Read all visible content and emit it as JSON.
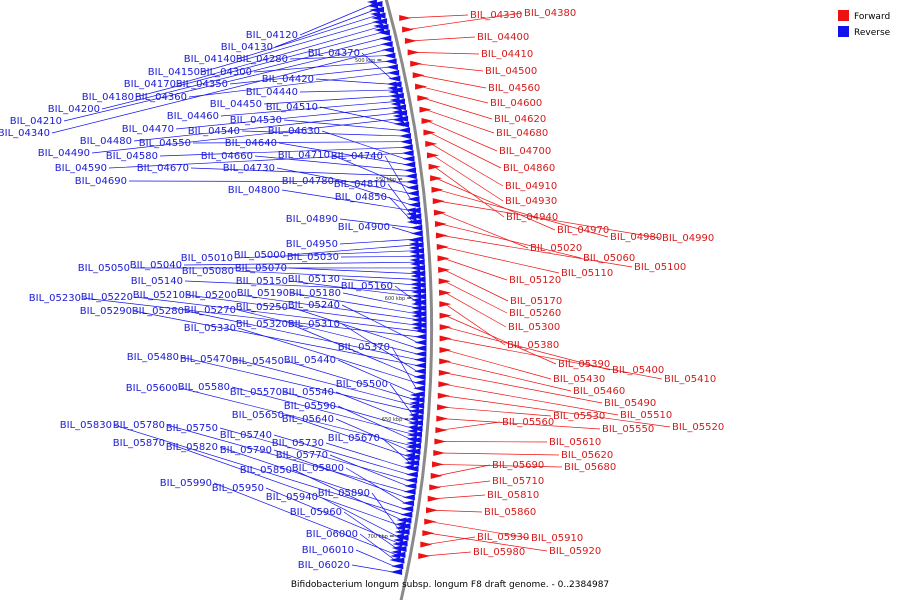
{
  "caption": "Bifidobacterium longum subsp. longum F8 draft genome. - 0..2384987",
  "legend": [
    {
      "label": "Forward",
      "color": "#ee1111"
    },
    {
      "label": "Reverse",
      "color": "#1111ee"
    }
  ],
  "colors": {
    "forward": "#ee1111",
    "reverse": "#1111ee",
    "backbone": "#888888"
  },
  "ticks": [
    "500 kbp",
    "550 kbp",
    "600 kbp",
    "650 kbp",
    "700 kbp"
  ],
  "reverse_genes": [
    "BIL_04120",
    "BIL_04130",
    "BIL_04140",
    "BIL_04150",
    "BIL_04170",
    "BIL_04180",
    "BIL_04200",
    "BIL_04210",
    "BIL_04340",
    "BIL_04280",
    "BIL_04300",
    "BIL_04350",
    "BIL_04360",
    "BIL_04370",
    "BIL_04420",
    "BIL_04440",
    "BIL_04450",
    "BIL_04460",
    "BIL_04470",
    "BIL_04480",
    "BIL_04490",
    "BIL_04510",
    "BIL_04530",
    "BIL_04540",
    "BIL_04550",
    "BIL_04580",
    "BIL_04590",
    "BIL_04630",
    "BIL_04640",
    "BIL_04660",
    "BIL_04670",
    "BIL_04690",
    "BIL_04710",
    "BIL_04730",
    "BIL_04740",
    "BIL_04780",
    "BIL_04800",
    "BIL_04810",
    "BIL_04850",
    "BIL_04890",
    "BIL_04900",
    "BIL_04950",
    "BIL_05000",
    "BIL_05010",
    "BIL_05030",
    "BIL_05040",
    "BIL_05050",
    "BIL_05070",
    "BIL_05080",
    "BIL_05130",
    "BIL_05140",
    "BIL_05150",
    "BIL_05160",
    "BIL_05180",
    "BIL_05190",
    "BIL_05200",
    "BIL_05210",
    "BIL_05220",
    "BIL_05230",
    "BIL_05240",
    "BIL_05250",
    "BIL_05270",
    "BIL_05280",
    "BIL_05290",
    "BIL_05310",
    "BIL_05320",
    "BIL_05330",
    "BIL_05370",
    "BIL_05440",
    "BIL_05450",
    "BIL_05470",
    "BIL_05480",
    "BIL_05500",
    "BIL_05540",
    "BIL_05570",
    "BIL_05580",
    "BIL_05590",
    "BIL_05600",
    "BIL_05640",
    "BIL_05650",
    "BIL_05670",
    "BIL_05730",
    "BIL_05740",
    "BIL_05750",
    "BIL_05770",
    "BIL_05780",
    "BIL_05790",
    "BIL_05800",
    "BIL_05820",
    "BIL_05830",
    "BIL_05850",
    "BIL_05870",
    "BIL_05890",
    "BIL_05940",
    "BIL_05950",
    "BIL_05960",
    "BIL_05990",
    "BIL_06000",
    "BIL_06010",
    "BIL_06020"
  ],
  "forward_genes": [
    "BIL_04330",
    "BIL_04380",
    "BIL_04400",
    "BIL_04410",
    "BIL_04500",
    "BIL_04560",
    "BIL_04600",
    "BIL_04620",
    "BIL_04680",
    "BIL_04700",
    "BIL_04860",
    "BIL_04910",
    "BIL_04930",
    "BIL_04940",
    "BIL_04970",
    "BIL_04980",
    "BIL_04990",
    "BIL_05020",
    "BIL_05060",
    "BIL_05100",
    "BIL_05110",
    "BIL_05120",
    "BIL_05170",
    "BIL_05260",
    "BIL_05300",
    "BIL_05380",
    "BIL_05390",
    "BIL_05400",
    "BIL_05410",
    "BIL_05430",
    "BIL_05460",
    "BIL_05490",
    "BIL_05510",
    "BIL_05520",
    "BIL_05530",
    "BIL_05550",
    "BIL_05560",
    "BIL_05610",
    "BIL_05620",
    "BIL_05680",
    "BIL_05690",
    "BIL_05710",
    "BIL_05810",
    "BIL_05860",
    "BIL_05910",
    "BIL_05920",
    "BIL_05930",
    "BIL_05980"
  ]
}
